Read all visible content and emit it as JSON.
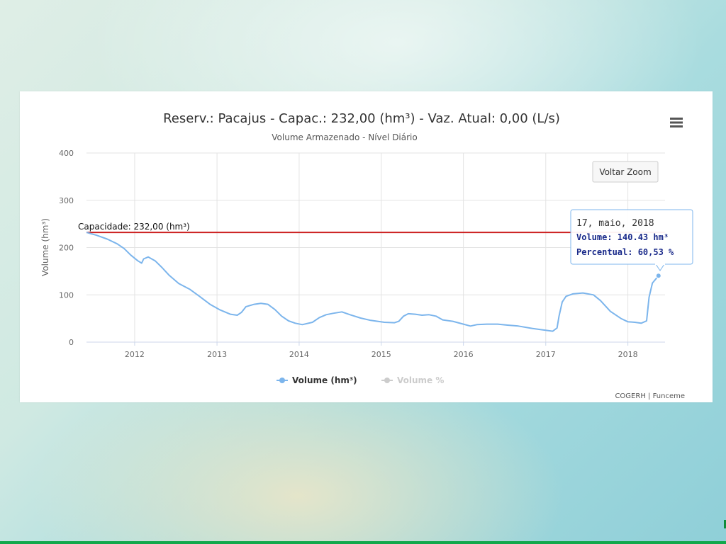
{
  "chart_data": {
    "type": "line",
    "title": "Reserv.: Pacajus - Capac.: 232,00 (hm³) - Vaz. Atual: 0,00 (L/s)",
    "subtitle": "Volume Armazenado - Nível Diário",
    "ylabel": "Volume (hm³)",
    "xlabel": "",
    "ylim": [
      0,
      400
    ],
    "xlim": [
      "2011-06-01",
      "2018-06-15"
    ],
    "y_ticks": [
      "0",
      "100",
      "200",
      "300",
      "400"
    ],
    "x_ticks": [
      "2012",
      "2013",
      "2014",
      "2015",
      "2016",
      "2017",
      "2018"
    ],
    "grid": true,
    "legend_position": "bottom",
    "capacity_line": {
      "value": 232,
      "label": "Capacidade: 232,00 (hm³)",
      "color": "#cc2020"
    },
    "series": [
      {
        "name": "Volume (hm³)",
        "color": "#7cb5ec",
        "visible": true,
        "points": [
          [
            "2011-06-01",
            232
          ],
          [
            "2011-07-15",
            226
          ],
          [
            "2011-09-01",
            218
          ],
          [
            "2011-10-15",
            208
          ],
          [
            "2011-11-15",
            198
          ],
          [
            "2011-12-15",
            184
          ],
          [
            "2012-01-15",
            172
          ],
          [
            "2012-02-01",
            167
          ],
          [
            "2012-02-10",
            176
          ],
          [
            "2012-03-01",
            180
          ],
          [
            "2012-04-01",
            172
          ],
          [
            "2012-05-01",
            158
          ],
          [
            "2012-06-01",
            142
          ],
          [
            "2012-07-15",
            124
          ],
          [
            "2012-09-01",
            112
          ],
          [
            "2012-10-15",
            97
          ],
          [
            "2012-12-01",
            80
          ],
          [
            "2013-01-15",
            68
          ],
          [
            "2013-03-01",
            59
          ],
          [
            "2013-04-01",
            57
          ],
          [
            "2013-04-20",
            63
          ],
          [
            "2013-05-10",
            75
          ],
          [
            "2013-06-15",
            80
          ],
          [
            "2013-07-15",
            82
          ],
          [
            "2013-08-15",
            80
          ],
          [
            "2013-09-15",
            69
          ],
          [
            "2013-10-15",
            55
          ],
          [
            "2013-11-15",
            45
          ],
          [
            "2013-12-15",
            40
          ],
          [
            "2014-01-15",
            37
          ],
          [
            "2014-03-01",
            42
          ],
          [
            "2014-04-01",
            52
          ],
          [
            "2014-05-01",
            58
          ],
          [
            "2014-06-01",
            61
          ],
          [
            "2014-07-10",
            64
          ],
          [
            "2014-08-15",
            58
          ],
          [
            "2014-10-01",
            51
          ],
          [
            "2014-11-15",
            46
          ],
          [
            "2015-01-15",
            42
          ],
          [
            "2015-03-01",
            41
          ],
          [
            "2015-03-20",
            44
          ],
          [
            "2015-04-10",
            55
          ],
          [
            "2015-05-01",
            60
          ],
          [
            "2015-06-01",
            59
          ],
          [
            "2015-07-01",
            57
          ],
          [
            "2015-08-01",
            58
          ],
          [
            "2015-09-01",
            55
          ],
          [
            "2015-10-01",
            47
          ],
          [
            "2015-11-15",
            44
          ],
          [
            "2016-01-01",
            38
          ],
          [
            "2016-02-01",
            34
          ],
          [
            "2016-03-01",
            37
          ],
          [
            "2016-04-15",
            38
          ],
          [
            "2016-06-01",
            38
          ],
          [
            "2016-07-15",
            36
          ],
          [
            "2016-09-01",
            34
          ],
          [
            "2016-11-01",
            29
          ],
          [
            "2017-01-01",
            25
          ],
          [
            "2017-02-01",
            23
          ],
          [
            "2017-02-20",
            30
          ],
          [
            "2017-03-01",
            55
          ],
          [
            "2017-03-15",
            85
          ],
          [
            "2017-04-01",
            97
          ],
          [
            "2017-05-01",
            102
          ],
          [
            "2017-06-15",
            104
          ],
          [
            "2017-08-01",
            100
          ],
          [
            "2017-09-01",
            88
          ],
          [
            "2017-10-15",
            65
          ],
          [
            "2017-12-01",
            50
          ],
          [
            "2018-01-01",
            43
          ],
          [
            "2018-02-01",
            42
          ],
          [
            "2018-03-01",
            40
          ],
          [
            "2018-03-25",
            45
          ],
          [
            "2018-04-05",
            95
          ],
          [
            "2018-04-20",
            125
          ],
          [
            "2018-05-17",
            140.43
          ]
        ]
      },
      {
        "name": "Volume %",
        "color": "#cccccc",
        "visible": false,
        "points": []
      }
    ],
    "tooltip": {
      "date": "17, maio, 2018",
      "volume_label": "Volume: 140.43 hm³",
      "percent_label": "Percentual: 60,53 %",
      "point": [
        "2018-05-17",
        140.43
      ]
    }
  },
  "ui": {
    "reset_zoom_label": "Voltar Zoom",
    "menu_icon": "hamburger-menu-icon",
    "credits": "COGERH | Funceme"
  }
}
